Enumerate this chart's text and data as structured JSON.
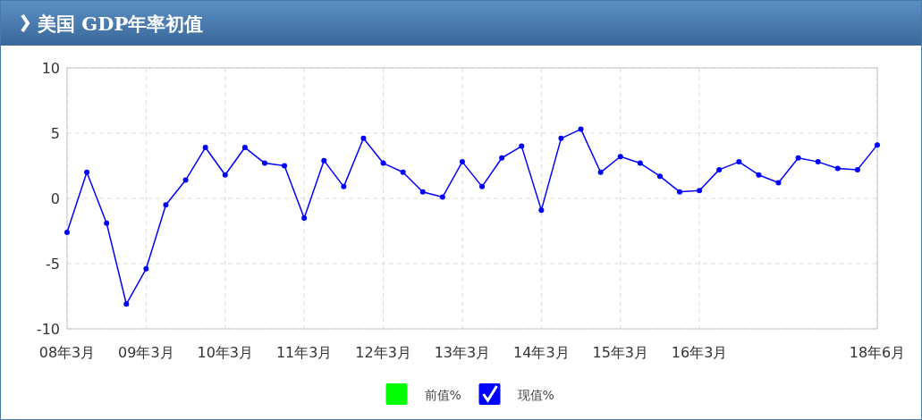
{
  "chart_data": {
    "type": "line",
    "title": "美国 GDP年率初值",
    "categories": [
      "08年3月",
      null,
      null,
      null,
      "09年3月",
      null,
      null,
      null,
      "10年3月",
      null,
      null,
      null,
      "11年3月",
      null,
      null,
      null,
      "12年3月",
      null,
      null,
      null,
      "13年3月",
      null,
      null,
      null,
      "14年3月",
      null,
      null,
      null,
      "15年3月",
      null,
      null,
      null,
      "16年3月",
      null,
      null,
      null,
      null,
      null,
      null,
      null,
      null,
      "18年6月"
    ],
    "series": [
      {
        "name": "前值%",
        "color": "#00ff00",
        "values": [
          null,
          null,
          null,
          null,
          null,
          null,
          null,
          null,
          null,
          null,
          null,
          null,
          null,
          null,
          null,
          null,
          null,
          null,
          null,
          null,
          null,
          null,
          null,
          null,
          null,
          null,
          null,
          null,
          null,
          null,
          null,
          null,
          null,
          null,
          null,
          null,
          null,
          null,
          null,
          null,
          null,
          null
        ]
      },
      {
        "name": "现值%",
        "color": "#0000ff",
        "values": [
          -2.6,
          2.0,
          -1.9,
          -8.1,
          -5.4,
          -0.5,
          1.4,
          3.9,
          1.8,
          3.9,
          2.7,
          2.5,
          -1.5,
          2.9,
          0.9,
          4.6,
          2.7,
          2.0,
          0.5,
          0.1,
          2.8,
          0.9,
          3.1,
          4.0,
          -0.9,
          4.6,
          5.3,
          2.0,
          3.2,
          2.7,
          1.7,
          0.5,
          0.6,
          2.2,
          2.8,
          1.8,
          1.2,
          3.1,
          2.8,
          2.3,
          2.2,
          4.1
        ]
      }
    ],
    "ylim": [
      -10,
      10
    ],
    "yticks": [
      -10,
      -5,
      0,
      5,
      10
    ],
    "grid": true,
    "legend": "bottom",
    "marker": "circle",
    "line_style": "solid"
  }
}
